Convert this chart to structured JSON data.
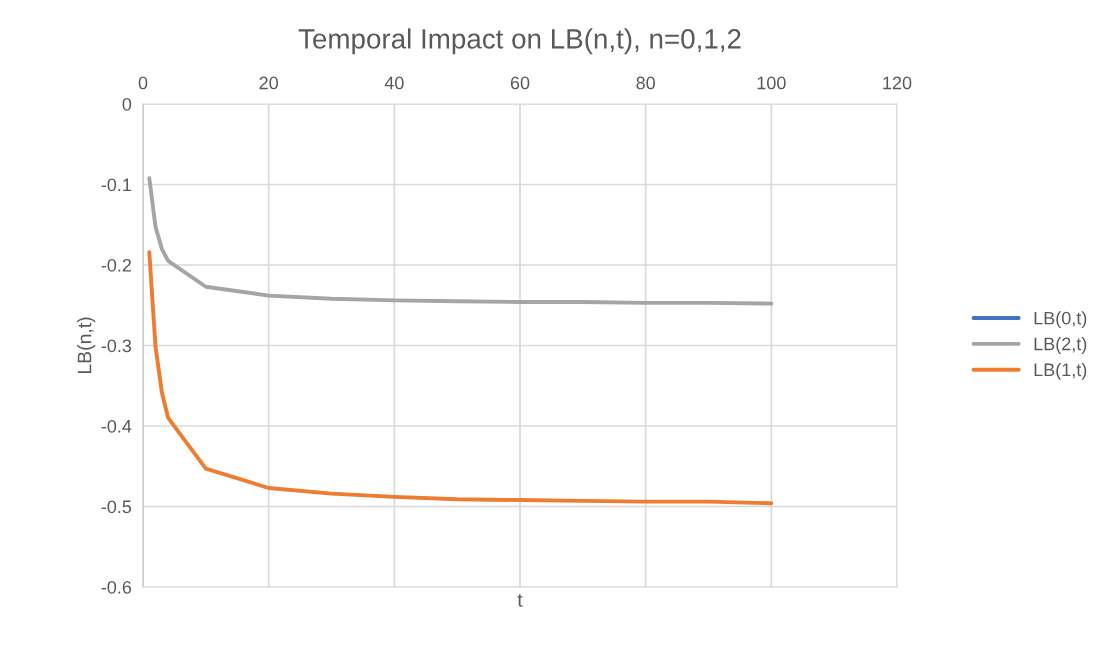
{
  "chart_data": {
    "type": "line",
    "title": "Temporal Impact on LB(n,t), n=0,1,2",
    "xlabel": "t",
    "ylabel": "LB(n,t)",
    "x": [
      1,
      2,
      3,
      4,
      10,
      20,
      30,
      40,
      50,
      60,
      70,
      80,
      90,
      100
    ],
    "series": [
      {
        "name": "LB(0,t)",
        "color": "#4472c4",
        "values": [
          null,
          null,
          null,
          null,
          null,
          null,
          null,
          null,
          null,
          null,
          null,
          null,
          null,
          null
        ]
      },
      {
        "name": "LB(2,t)",
        "color": "#a5a5a5",
        "values": [
          -0.092,
          -0.153,
          -0.18,
          -0.195,
          -0.227,
          -0.238,
          -0.242,
          -0.244,
          -0.245,
          -0.246,
          -0.246,
          -0.247,
          -0.247,
          -0.248
        ]
      },
      {
        "name": "LB(1,t)",
        "color": "#ed7d31",
        "values": [
          -0.184,
          -0.302,
          -0.358,
          -0.39,
          -0.453,
          -0.477,
          -0.484,
          -0.488,
          -0.491,
          -0.492,
          -0.493,
          -0.494,
          -0.494,
          -0.496
        ]
      }
    ],
    "xlim": [
      0,
      120
    ],
    "xticks": [
      0,
      20,
      40,
      60,
      80,
      100,
      120
    ],
    "ylim": [
      -0.6,
      0
    ],
    "yticks": [
      -0.6,
      -0.5,
      -0.4,
      -0.3,
      -0.2,
      -0.1,
      0
    ],
    "grid": true,
    "legend": "right",
    "marker": "none",
    "line_style": "solid"
  }
}
